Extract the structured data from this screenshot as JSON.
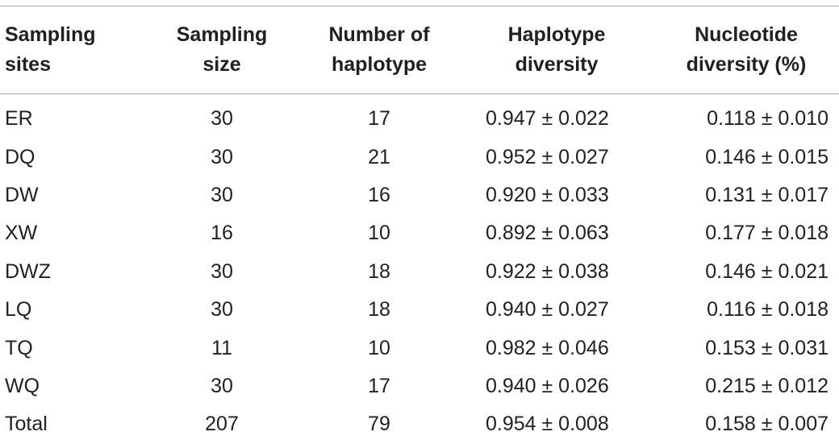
{
  "table": {
    "headers": [
      [
        "Sampling",
        "sites"
      ],
      [
        "Sampling",
        "size"
      ],
      [
        "Number of",
        "haplotype"
      ],
      [
        "Haplotype",
        "diversity"
      ],
      [
        "Nucleotide",
        "diversity (%)"
      ]
    ],
    "rows": [
      [
        "ER",
        "30",
        "17",
        "0.947 ± 0.022",
        "0.118 ± 0.010"
      ],
      [
        "DQ",
        "30",
        "21",
        "0.952 ± 0.027",
        "0.146 ± 0.015"
      ],
      [
        "DW",
        "30",
        "16",
        "0.920 ± 0.033",
        "0.131 ± 0.017"
      ],
      [
        "XW",
        "16",
        "10",
        "0.892 ± 0.063",
        "0.177 ± 0.018"
      ],
      [
        "DWZ",
        "30",
        "18",
        "0.922 ± 0.038",
        "0.146 ± 0.021"
      ],
      [
        "LQ",
        "30",
        "18",
        "0.940 ± 0.027",
        "0.116 ± 0.018"
      ],
      [
        "TQ",
        "11",
        "10",
        "0.982 ± 0.046",
        "0.153 ± 0.031"
      ],
      [
        "WQ",
        "30",
        "17",
        "0.940 ± 0.026",
        "0.215 ± 0.012"
      ],
      [
        "Total",
        "207",
        "79",
        "0.954 ± 0.008",
        "0.158 ± 0.007"
      ]
    ]
  }
}
